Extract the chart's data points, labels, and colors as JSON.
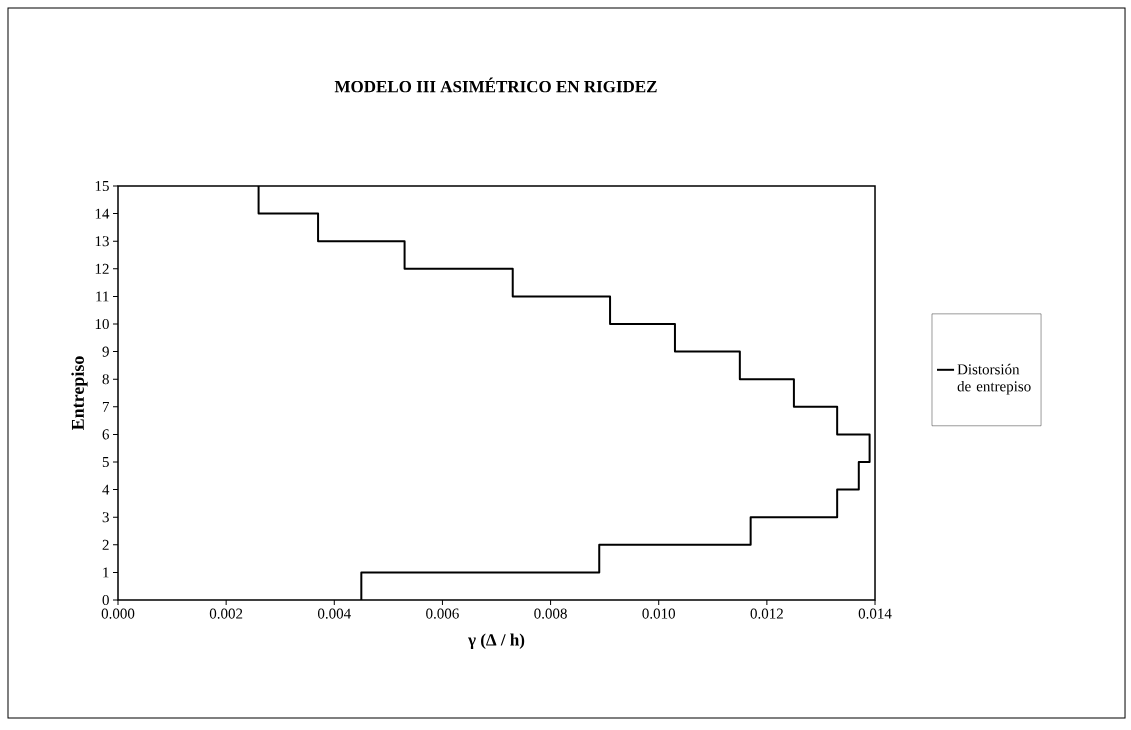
{
  "chart_data": {
    "type": "line",
    "title": "MODELO III ASIMÉTRICO EN RIGIDEZ",
    "xlabel": "γ  (Δ / h)",
    "ylabel": "Entrepiso",
    "xlim": [
      0,
      0.014
    ],
    "ylim": [
      0,
      15
    ],
    "xticks": [
      {
        "value": 0,
        "label": "0.000"
      },
      {
        "value": 0.002,
        "label": "0.002"
      },
      {
        "value": 0.004,
        "label": "0.004"
      },
      {
        "value": 0.006,
        "label": "0.006"
      },
      {
        "value": 0.008,
        "label": "0.008"
      },
      {
        "value": 0.01,
        "label": "0.010"
      },
      {
        "value": 0.012,
        "label": "0.012"
      },
      {
        "value": 0.014,
        "label": "0.014"
      }
    ],
    "yticks": [
      0,
      1,
      2,
      3,
      4,
      5,
      6,
      7,
      8,
      9,
      10,
      11,
      12,
      13,
      14,
      15
    ],
    "grid": false,
    "legend": "right",
    "marker": "none",
    "line_style": "solid",
    "series": [
      {
        "name": "Distorsión de entrepiso",
        "color": "#000000",
        "x": [
          0.0045,
          0.0045,
          0.0089,
          0.0089,
          0.0117,
          0.0117,
          0.0133,
          0.0133,
          0.0137,
          0.0137,
          0.0139,
          0.0139,
          0.0133,
          0.0133,
          0.0125,
          0.0125,
          0.0115,
          0.0115,
          0.0103,
          0.0103,
          0.0091,
          0.0091,
          0.0073,
          0.0073,
          0.0053,
          0.0053,
          0.0037,
          0.0037,
          0.0026,
          0.0026
        ],
        "values": [
          0,
          1,
          1,
          2,
          2,
          3,
          3,
          4,
          4,
          5,
          5,
          6,
          6,
          7,
          7,
          8,
          8,
          9,
          9,
          10,
          10,
          11,
          11,
          12,
          12,
          13,
          13,
          14,
          14,
          15
        ]
      }
    ]
  }
}
